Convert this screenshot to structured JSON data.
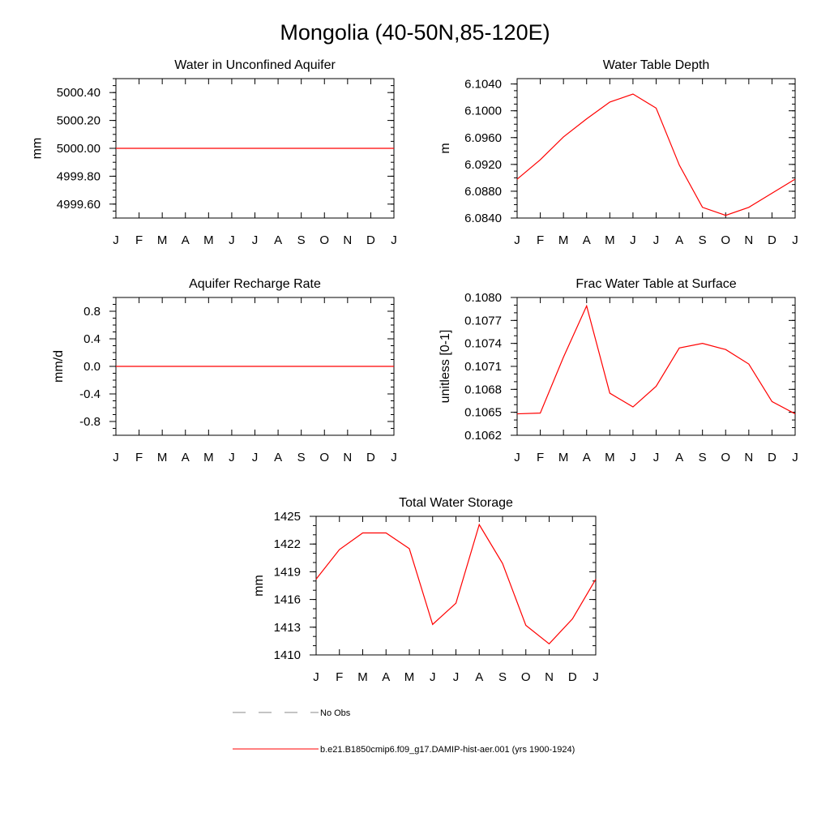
{
  "figure": {
    "title": "Mongolia (40-50N,85-120E)"
  },
  "colors": {
    "series": "#ff0000",
    "obs": "#888888",
    "axis": "#000000",
    "background": "#ffffff"
  },
  "legend": {
    "placement": "bottom-center",
    "entries": [
      {
        "label": "No Obs",
        "style": "dashed",
        "color": "#888888"
      },
      {
        "label": "b.e21.B1850cmip6.f09_g17.DAMIP-hist-aer.001 (yrs 1900-1924)",
        "style": "solid",
        "color": "#ff0000"
      }
    ]
  },
  "chart_data": [
    {
      "type": "line",
      "title": "Water in Unconfined Aquifer",
      "xlabel": "",
      "ylabel": "mm",
      "categories": [
        "J",
        "F",
        "M",
        "A",
        "M",
        "J",
        "J",
        "A",
        "S",
        "O",
        "N",
        "D",
        "J"
      ],
      "ylim": [
        4999.5,
        5000.5
      ],
      "yticks": [
        4999.6,
        4999.8,
        5000.0,
        5000.2,
        5000.4
      ],
      "ytick_labels": [
        "4999.60",
        "4999.80",
        "5000.00",
        "5000.20",
        "5000.40"
      ],
      "y_minor_step": 0.05,
      "grid": false,
      "series": [
        {
          "values": [
            5000,
            5000,
            5000,
            5000,
            5000,
            5000,
            5000,
            5000,
            5000,
            5000,
            5000,
            5000,
            5000
          ]
        }
      ]
    },
    {
      "type": "line",
      "title": "Water Table Depth",
      "xlabel": "",
      "ylabel": "m",
      "categories": [
        "J",
        "F",
        "M",
        "A",
        "M",
        "J",
        "J",
        "A",
        "S",
        "O",
        "N",
        "D",
        "J"
      ],
      "ylim": [
        6.084,
        6.1048
      ],
      "yticks": [
        6.084,
        6.088,
        6.092,
        6.096,
        6.1,
        6.104
      ],
      "ytick_labels": [
        "6.0840",
        "6.0880",
        "6.0920",
        "6.0960",
        "6.1000",
        "6.1040"
      ],
      "y_minor_step": 0.001,
      "grid": false,
      "series": [
        {
          "values": [
            6.0898,
            6.0927,
            6.0961,
            6.0988,
            6.1013,
            6.1025,
            6.1004,
            6.0919,
            6.0856,
            6.0844,
            6.0856,
            6.0877,
            6.0898
          ]
        }
      ]
    },
    {
      "type": "line",
      "title": "Aquifer Recharge Rate",
      "xlabel": "",
      "ylabel": "mm/d",
      "categories": [
        "J",
        "F",
        "M",
        "A",
        "M",
        "J",
        "J",
        "A",
        "S",
        "O",
        "N",
        "D",
        "J"
      ],
      "ylim": [
        -1.0,
        1.0
      ],
      "yticks": [
        -0.8,
        -0.4,
        0.0,
        0.4,
        0.8
      ],
      "ytick_labels": [
        "-0.8",
        "-0.4",
        "0.0",
        "0.4",
        "0.8"
      ],
      "y_minor_step": 0.1,
      "grid": false,
      "series": [
        {
          "values": [
            0,
            0,
            0,
            0,
            0,
            0,
            0,
            0,
            0,
            0,
            0,
            0,
            0
          ]
        }
      ]
    },
    {
      "type": "line",
      "title": "Frac Water Table at Surface",
      "xlabel": "",
      "ylabel": "unitless [0-1]",
      "categories": [
        "J",
        "F",
        "M",
        "A",
        "M",
        "J",
        "J",
        "A",
        "S",
        "O",
        "N",
        "D",
        "J"
      ],
      "ylim": [
        0.1062,
        0.108
      ],
      "yticks": [
        0.1062,
        0.1065,
        0.1068,
        0.1071,
        0.1074,
        0.1077,
        0.108
      ],
      "ytick_labels": [
        "0.1062",
        "0.1065",
        "0.1068",
        "0.1071",
        "0.1074",
        "0.1077",
        "0.1080"
      ],
      "y_minor_step": 0.0001,
      "grid": false,
      "series": [
        {
          "values": [
            0.10648,
            0.10649,
            0.10722,
            0.10789,
            0.10675,
            0.10657,
            0.10684,
            0.10734,
            0.1074,
            0.10732,
            0.10713,
            0.10664,
            0.10648
          ]
        }
      ]
    },
    {
      "type": "line",
      "title": "Total Water Storage",
      "xlabel": "",
      "ylabel": "mm",
      "categories": [
        "J",
        "F",
        "M",
        "A",
        "M",
        "J",
        "J",
        "A",
        "S",
        "O",
        "N",
        "D",
        "J"
      ],
      "ylim": [
        1410,
        1425
      ],
      "yticks": [
        1410,
        1413,
        1416,
        1419,
        1422,
        1425
      ],
      "ytick_labels": [
        "1410",
        "1413",
        "1416",
        "1419",
        "1422",
        "1425"
      ],
      "y_minor_step": 1,
      "grid": false,
      "series": [
        {
          "values": [
            1418.2,
            1421.4,
            1423.2,
            1423.2,
            1421.5,
            1413.3,
            1415.6,
            1424.1,
            1419.9,
            1413.2,
            1411.2,
            1413.9,
            1418.2
          ]
        }
      ]
    }
  ]
}
